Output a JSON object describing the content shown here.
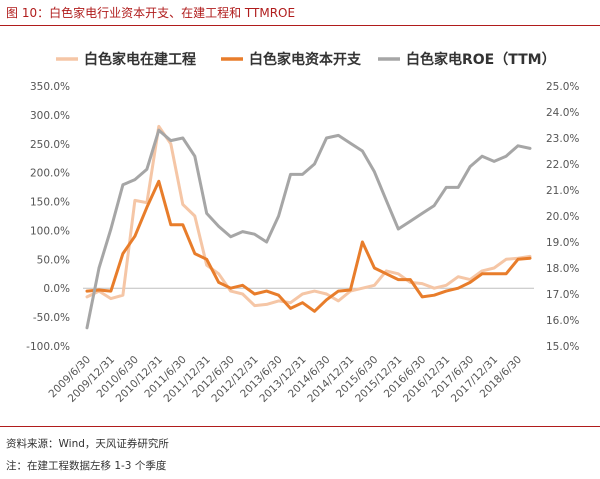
{
  "figure": {
    "title": "图 10：白色家电行业资本开支、在建工程和 TTMROE",
    "source": "资料来源：Wind，天风证券研究所",
    "note": "注：在建工程数据左移 1-3 个季度"
  },
  "chart_data": {
    "type": "line",
    "x": [
      "2009/6/30",
      "2009/9/30",
      "2009/12/31",
      "2010/3/31",
      "2010/6/30",
      "2010/9/30",
      "2010/12/31",
      "2011/3/31",
      "2011/6/30",
      "2011/9/30",
      "2011/12/31",
      "2012/3/31",
      "2012/6/30",
      "2012/9/30",
      "2012/12/31",
      "2013/3/31",
      "2013/6/30",
      "2013/9/30",
      "2013/12/31",
      "2014/3/31",
      "2014/6/30",
      "2014/9/30",
      "2014/12/31",
      "2015/3/31",
      "2015/6/30",
      "2015/9/30",
      "2015/12/31",
      "2016/3/31",
      "2016/6/30",
      "2016/9/30",
      "2016/12/31",
      "2017/3/31",
      "2017/6/30",
      "2017/9/30",
      "2017/12/31",
      "2018/3/31",
      "2018/6/30",
      "2018/9/30"
    ],
    "xtick_labels": [
      "2009/6/30",
      "2009/12/31",
      "2010/6/30",
      "2010/12/31",
      "2011/6/30",
      "2011/12/31",
      "2012/6/30",
      "2012/12/31",
      "2013/6/30",
      "2013/12/31",
      "2014/6/30",
      "2014/12/31",
      "2015/6/30",
      "2015/12/31",
      "2016/6/30",
      "2016/12/31",
      "2017/6/30",
      "2017/12/31",
      "2018/6/30"
    ],
    "series": [
      {
        "name": "白色家电在建工程",
        "axis": "left",
        "color": "#f5c6a6",
        "values": [
          -15,
          -5,
          -18,
          -12,
          152,
          148,
          280,
          250,
          145,
          125,
          40,
          25,
          -5,
          -10,
          -30,
          -28,
          -22,
          -25,
          -10,
          -5,
          -10,
          -22,
          -5,
          0,
          5,
          30,
          25,
          10,
          8,
          0,
          5,
          20,
          15,
          30,
          35,
          50,
          52,
          55
        ]
      },
      {
        "name": "白色家电资本开支",
        "axis": "left",
        "color": "#e87d2b",
        "values": [
          -5,
          -3,
          -5,
          60,
          90,
          140,
          185,
          110,
          110,
          60,
          50,
          10,
          0,
          5,
          -10,
          -5,
          -12,
          -35,
          -25,
          -40,
          -20,
          -5,
          -3,
          80,
          35,
          25,
          15,
          15,
          -15,
          -12,
          -5,
          0,
          10,
          25,
          25,
          25,
          50,
          52
        ]
      },
      {
        "name": "白色家电ROE（TTM）",
        "axis": "right",
        "color": "#a6a6a6",
        "values": [
          15.7,
          18.0,
          19.5,
          21.2,
          21.4,
          21.8,
          23.3,
          22.9,
          23.0,
          22.3,
          20.1,
          19.6,
          19.2,
          19.4,
          19.3,
          19.0,
          20.0,
          21.6,
          21.6,
          22.0,
          23.0,
          23.1,
          22.8,
          22.5,
          21.7,
          20.6,
          19.5,
          19.8,
          20.1,
          20.4,
          21.1,
          21.1,
          21.9,
          22.3,
          22.1,
          22.3,
          22.7,
          22.6
        ]
      }
    ],
    "y_left": {
      "min": -100,
      "max": 350,
      "step": 50,
      "tick_labels": [
        "-100.0%",
        "-50.0%",
        "0.0%",
        "50.0%",
        "100.0%",
        "150.0%",
        "200.0%",
        "250.0%",
        "300.0%",
        "350.0%"
      ]
    },
    "y_right": {
      "min": 15,
      "max": 25,
      "step": 1,
      "tick_labels": [
        "15.0%",
        "16.0%",
        "17.0%",
        "18.0%",
        "19.0%",
        "20.0%",
        "21.0%",
        "22.0%",
        "23.0%",
        "24.0%",
        "25.0%"
      ]
    },
    "legend": [
      "白色家电在建工程",
      "白色家电资本开支",
      "白色家电ROE（TTM）"
    ],
    "legend_position": "top",
    "grid": false
  }
}
